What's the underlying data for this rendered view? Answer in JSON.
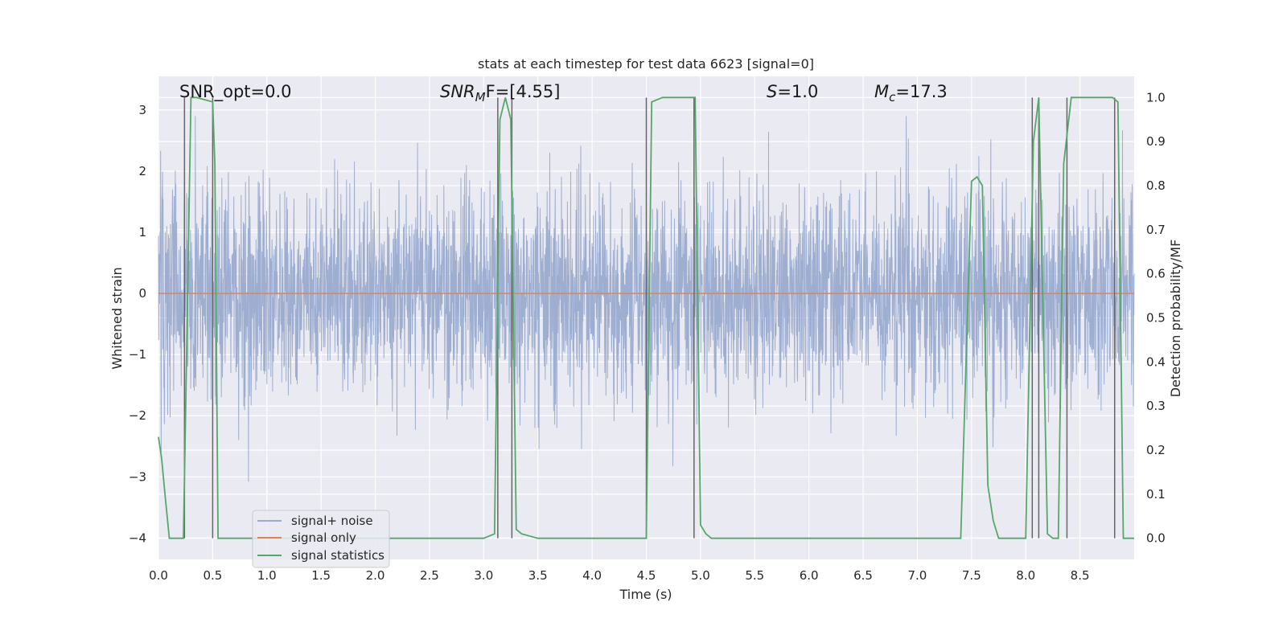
{
  "chart_data": {
    "type": "line",
    "title": "stats at each timestep for test data 6623 [signal=0]",
    "xlabel": "Time (s)",
    "ylabel": "Whitened strain",
    "ylabel_right": "Detection probability/MF",
    "xlim": [
      0.0,
      9.0
    ],
    "ylim": [
      -4.35,
      3.55
    ],
    "ylim_right": [
      -0.048,
      1.048
    ],
    "xticks": [
      "0.0",
      "0.5",
      "1.0",
      "1.5",
      "2.0",
      "2.5",
      "3.0",
      "3.5",
      "4.0",
      "4.5",
      "5.0",
      "5.5",
      "6.0",
      "6.5",
      "7.0",
      "7.5",
      "8.0",
      "8.5"
    ],
    "xtick_values": [
      0,
      0.5,
      1,
      1.5,
      2,
      2.5,
      3,
      3.5,
      4,
      4.5,
      5,
      5.5,
      6,
      6.5,
      7,
      7.5,
      8,
      8.5
    ],
    "yticks": [
      "3",
      "2",
      "1",
      "0",
      "−1",
      "−2",
      "−3",
      "−4"
    ],
    "ytick_values": [
      3,
      2,
      1,
      0,
      -1,
      -2,
      -3,
      -4
    ],
    "yticks_right": [
      "1.0",
      "0.9",
      "0.8",
      "0.7",
      "0.6",
      "0.5",
      "0.4",
      "0.3",
      "0.2",
      "0.1",
      "0.0"
    ],
    "ytick_right_values": [
      1.0,
      0.9,
      0.8,
      0.7,
      0.6,
      0.5,
      0.4,
      0.3,
      0.2,
      0.1,
      0.0
    ],
    "grid": true,
    "legend_position": "lower-left",
    "annotations": {
      "snr_opt": "SNR_opt=0.0",
      "snr_mf_main": "SNR",
      "snr_mf_sub": "M",
      "snr_mf_rest": "F=[4.55]",
      "s_main": "S",
      "s_rest": "=1.0",
      "mc_main": "M",
      "mc_sub": "c",
      "mc_rest": "=17.3"
    },
    "series": [
      {
        "name": "signal+ noise",
        "color": "#9aabcf",
        "description_values": "noise between about -3.3 and 2.9"
      },
      {
        "name": "signal only",
        "color": "#dd8452",
        "values_constant": 0.0
      },
      {
        "name": "signal statistics",
        "color": "#55a868",
        "axis": "right",
        "x": [
          0.0,
          0.03,
          0.06,
          0.1,
          0.23,
          0.25,
          0.3,
          0.35,
          0.5,
          0.52,
          0.55,
          0.6,
          3.0,
          3.1,
          3.15,
          3.2,
          3.25,
          3.3,
          3.35,
          3.5,
          4.5,
          4.55,
          4.65,
          4.95,
          5.0,
          5.05,
          5.1,
          7.4,
          7.5,
          7.55,
          7.6,
          7.65,
          7.7,
          7.75,
          8.0,
          8.07,
          8.12,
          8.2,
          8.25,
          8.3,
          8.35,
          8.42,
          8.45,
          8.8,
          8.85,
          8.9,
          9.0
        ],
        "values": [
          0.23,
          0.18,
          0.1,
          0.0,
          0.0,
          0.28,
          1.0,
          1.0,
          0.99,
          0.85,
          0.0,
          0.0,
          0.0,
          0.01,
          0.95,
          1.0,
          0.95,
          0.02,
          0.01,
          0.0,
          0.0,
          0.99,
          1.0,
          1.0,
          0.03,
          0.01,
          0.0,
          0.0,
          0.81,
          0.82,
          0.8,
          0.12,
          0.04,
          0.0,
          0.0,
          0.9,
          1.0,
          0.01,
          0.0,
          0.0,
          0.85,
          1.0,
          1.0,
          1.0,
          0.99,
          0.0,
          0.0
        ]
      }
    ],
    "vertical_markers_x": [
      0.24,
      0.5,
      3.13,
      3.26,
      4.5,
      4.94,
      8.06,
      8.12,
      8.38,
      8.82
    ],
    "vertical_marker_color": "#666666"
  }
}
